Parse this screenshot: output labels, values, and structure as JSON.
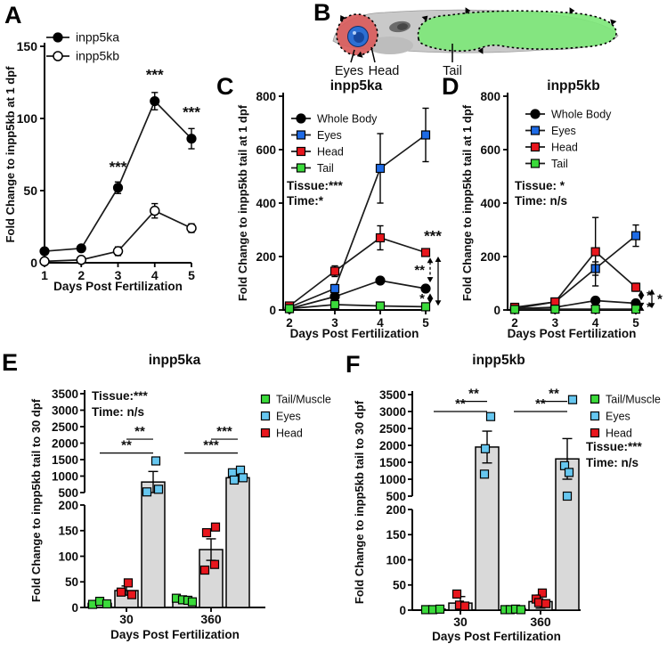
{
  "panels": {
    "A": {
      "letter": "A"
    },
    "B": {
      "letter": "B",
      "labels": {
        "eyes": "Eyes",
        "head": "Head",
        "tail": "Tail"
      }
    },
    "C": {
      "letter": "C"
    },
    "D": {
      "letter": "D"
    },
    "E": {
      "letter": "E"
    },
    "F": {
      "letter": "F"
    }
  },
  "colors": {
    "whole_body": "#000000",
    "eyes_line": "#1e6be6",
    "eyes_bar": "#66c7f0",
    "head": "#e8161d",
    "tail": "#3bdb3b",
    "bar_fill": "#d9d9d9",
    "fish_body": "#c9c9c9",
    "fish_head_region": "#d95c5c",
    "fish_tail_region": "#7ce878",
    "fish_eye_outer": "#2d6fd3",
    "fish_eye_inner": "#17479e"
  },
  "chart_data": [
    {
      "id": "A",
      "type": "line",
      "title": "",
      "xlabel": "Days Post Fertilization",
      "ylabel": "Fold Change to inpp5kb at 1 dpf",
      "ylim": [
        0,
        150
      ],
      "yticks": [
        0,
        50,
        100,
        150
      ],
      "xticks": [
        1,
        2,
        3,
        4,
        5
      ],
      "series": [
        {
          "name": "inpp5ka",
          "marker": "circle",
          "color": "#000000",
          "x": [
            1,
            2,
            3,
            4,
            5
          ],
          "values": [
            8,
            10,
            52,
            112,
            86
          ],
          "errors": [
            1.5,
            1.5,
            4,
            6,
            7
          ]
        },
        {
          "name": "inpp5kb",
          "marker": "circle-open",
          "color": "#000000",
          "x": [
            1,
            2,
            3,
            4,
            5
          ],
          "values": [
            1,
            2,
            8,
            36,
            24
          ],
          "errors": [
            0.5,
            1,
            3,
            5,
            3
          ]
        }
      ],
      "sig": [
        {
          "x": 3,
          "v": 63,
          "text": "***"
        },
        {
          "x": 4,
          "v": 127,
          "text": "***"
        },
        {
          "x": 5,
          "v": 101,
          "text": "***"
        }
      ],
      "arrows": [],
      "notes": []
    },
    {
      "id": "C",
      "type": "line",
      "title": "inpp5ka",
      "xlabel": "Days Post Fertilization",
      "ylabel": "Fold Change to inpp5kb tail at 1 dpf",
      "ylim": [
        0,
        800
      ],
      "yticks": [
        0,
        200,
        400,
        600,
        800
      ],
      "xticks": [
        2,
        3,
        4,
        5
      ],
      "series": [
        {
          "name": "Whole Body",
          "marker": "circle",
          "color": "#000000",
          "x": [
            2,
            3,
            4,
            5
          ],
          "values": [
            5,
            50,
            110,
            80
          ],
          "errors": [
            3,
            6,
            10,
            8
          ]
        },
        {
          "name": "Eyes",
          "marker": "square",
          "color": "#1e6be6",
          "x": [
            2,
            3,
            4,
            5
          ],
          "values": [
            10,
            80,
            530,
            655
          ],
          "errors": [
            4,
            15,
            130,
            100
          ]
        },
        {
          "name": "Head",
          "marker": "square",
          "color": "#e8161d",
          "x": [
            2,
            3,
            4,
            5
          ],
          "values": [
            15,
            145,
            270,
            215
          ],
          "errors": [
            5,
            20,
            45,
            12
          ]
        },
        {
          "name": "Tail",
          "marker": "square",
          "color": "#3bdb3b",
          "x": [
            2,
            3,
            4,
            5
          ],
          "values": [
            5,
            20,
            15,
            12
          ],
          "errors": [
            2,
            4,
            3,
            3
          ]
        }
      ],
      "sig": [
        {
          "x": 5,
          "v": 258,
          "text": "***",
          "dx": 8
        }
      ],
      "arrows": [
        {
          "dx": 5,
          "v1": 196,
          "v2": 103,
          "dashed": true,
          "label": "**",
          "side": "left"
        },
        {
          "dx": 5,
          "v1": 62,
          "v2": 24,
          "dashed": true,
          "label": "*",
          "side": "left"
        },
        {
          "dx": 14,
          "v1": 200,
          "v2": 16,
          "dashed": false,
          "label": "",
          "side": "left"
        }
      ],
      "notes": [
        "Tissue:***",
        "Time:*"
      ]
    },
    {
      "id": "D",
      "type": "line",
      "title": "inpp5kb",
      "xlabel": "Days Post Fertilization",
      "ylabel": "Fold Change to inpp5kb tail at 1 dpf",
      "ylim": [
        0,
        800
      ],
      "yticks": [
        0,
        200,
        400,
        600,
        800
      ],
      "xticks": [
        2,
        3,
        4,
        5
      ],
      "series": [
        {
          "name": "Whole Body",
          "marker": "circle",
          "color": "#000000",
          "x": [
            2,
            3,
            4,
            5
          ],
          "values": [
            5,
            10,
            35,
            25
          ],
          "errors": [
            2,
            3,
            6,
            5
          ]
        },
        {
          "name": "Eyes",
          "marker": "square",
          "color": "#1e6be6",
          "x": [
            2,
            3,
            4,
            5
          ],
          "values": [
            5,
            30,
            155,
            278
          ],
          "errors": [
            2,
            5,
            25,
            40
          ]
        },
        {
          "name": "Head",
          "marker": "square",
          "color": "#e8161d",
          "x": [
            2,
            3,
            4,
            5
          ],
          "values": [
            10,
            30,
            218,
            85
          ],
          "errors": [
            3,
            6,
            128,
            15
          ]
        },
        {
          "name": "Tail",
          "marker": "square",
          "color": "#3bdb3b",
          "x": [
            2,
            3,
            4,
            5
          ],
          "values": [
            2,
            3,
            3,
            3
          ],
          "errors": [
            1,
            1,
            1,
            1
          ]
        }
      ],
      "sig": [],
      "arrows": [
        {
          "dx": 6,
          "v1": 74,
          "v2": 36,
          "dashed": true,
          "label": "*",
          "side": "right"
        },
        {
          "dx": 6,
          "v1": 17,
          "v2": 7,
          "dashed": true,
          "label": "*",
          "side": "right"
        },
        {
          "dx": 18,
          "v1": 78,
          "v2": 6,
          "dashed": false,
          "label": "*",
          "side": "right"
        }
      ],
      "notes": [
        "Tissue: *",
        "Time: n/s"
      ]
    },
    {
      "id": "E",
      "type": "bar",
      "title": "inpp5ka",
      "xlabel": "Days Post Fertilization",
      "ylabel": "Fold Change to inpp5kb tail to 30 dpf",
      "axis_break": {
        "lower": [
          0,
          200
        ],
        "upper": [
          500,
          3500
        ]
      },
      "yticks_lower": [
        0,
        50,
        100,
        150,
        200
      ],
      "yticks_upper": [
        500,
        1000,
        1500,
        2000,
        2500,
        3000,
        3500
      ],
      "groups": [
        "30",
        "360"
      ],
      "series": [
        {
          "name": "Tail/Muscle",
          "color": "#3bdb3b",
          "bars": [
            8,
            12
          ],
          "errors": [
            2,
            3
          ],
          "points": [
            [
              [
                -8,
                6
              ],
              [
                0,
                12
              ],
              [
                8,
                7
              ]
            ],
            [
              [
                -9,
                18
              ],
              [
                -2,
                15
              ],
              [
                4,
                14
              ],
              [
                9,
                11
              ]
            ]
          ]
        },
        {
          "name": "Head",
          "color": "#e8161d",
          "bars": [
            33,
            113
          ],
          "errors": [
            9,
            21
          ],
          "points": [
            [
              [
                -6,
                30
              ],
              [
                2,
                48
              ],
              [
                6,
                25
              ]
            ],
            [
              [
                -5,
                146
              ],
              [
                5,
                157
              ],
              [
                -7,
                73
              ],
              [
                4,
                84
              ]
            ]
          ]
        },
        {
          "name": "Eyes",
          "color": "#66c7f0",
          "bars": [
            820,
            950
          ],
          "errors": [
            320,
            95
          ],
          "points": [
            [
              [
                3,
                1460
              ],
              [
                -7,
                520
              ],
              [
                6,
                600
              ]
            ],
            [
              [
                -6,
                1100
              ],
              [
                3,
                1180
              ],
              [
                -4,
                880
              ],
              [
                6,
                950
              ]
            ]
          ]
        }
      ],
      "sig": [
        {
          "group": 0,
          "from": "Tail/Muscle",
          "to": "Eyes",
          "v": 1700,
          "text": "**"
        },
        {
          "group": 0,
          "from": "Head",
          "to": "Eyes",
          "v": 2120,
          "text": "**"
        },
        {
          "group": 1,
          "from": "Tail/Muscle",
          "to": "Eyes",
          "v": 1700,
          "text": "***"
        },
        {
          "group": 1,
          "from": "Head",
          "to": "Eyes",
          "v": 2120,
          "text": "***"
        }
      ],
      "notes": [
        "Tissue:***",
        "Time: n/s"
      ],
      "legend": [
        "Tail/Muscle",
        "Eyes",
        "Head"
      ]
    },
    {
      "id": "F",
      "type": "bar",
      "title": "inpp5kb",
      "xlabel": "Days Post Fertilization",
      "ylabel": "Fold Change to inpp5kb tail to 30 dpf",
      "axis_break": {
        "lower": [
          0,
          200
        ],
        "upper": [
          500,
          3500
        ]
      },
      "yticks_lower": [
        0,
        50,
        100,
        150,
        200
      ],
      "yticks_upper": [
        500,
        1000,
        1500,
        2000,
        2500,
        3000,
        3500
      ],
      "groups": [
        "30",
        "360"
      ],
      "series": [
        {
          "name": "Tail/Muscle",
          "color": "#3bdb3b",
          "bars": [
            2,
            3
          ],
          "errors": [
            1,
            1
          ],
          "points": [
            [
              [
                -9,
                1
              ],
              [
                -1,
                1
              ],
              [
                7,
                2
              ]
            ],
            [
              [
                -10,
                1
              ],
              [
                -4,
                1
              ],
              [
                2,
                2
              ],
              [
                8,
                1
              ]
            ]
          ]
        },
        {
          "name": "Head",
          "color": "#e8161d",
          "bars": [
            14,
            17
          ],
          "errors": [
            13,
            13
          ],
          "points": [
            [
              [
                -4,
                32
              ],
              [
                -1,
                10
              ],
              [
                5,
                8
              ]
            ],
            [
              [
                2,
                34
              ],
              [
                -5,
                22
              ],
              [
                -2,
                15
              ],
              [
                6,
                13
              ]
            ]
          ]
        },
        {
          "name": "Eyes",
          "color": "#66c7f0",
          "bars": [
            1950,
            1600
          ],
          "errors": [
            470,
            600
          ],
          "points": [
            [
              [
                4,
                2850
              ],
              [
                -2,
                1900
              ],
              [
                -3,
                1150
              ]
            ],
            [
              [
                6,
                3350
              ],
              [
                -3,
                1400
              ],
              [
                2,
                1200
              ],
              [
                0,
                500
              ]
            ]
          ]
        }
      ],
      "sig": [
        {
          "group": 0,
          "from": "Tail/Muscle",
          "to": "Eyes",
          "v": 3000,
          "text": "**"
        },
        {
          "group": 0,
          "from": "Head",
          "to": "Eyes",
          "v": 3300,
          "text": "**"
        },
        {
          "group": 1,
          "from": "Tail/Muscle",
          "to": "Eyes",
          "v": 3000,
          "text": "**"
        },
        {
          "group": 1,
          "from": "Head",
          "to": "Eyes",
          "v": 3300,
          "text": "**"
        }
      ],
      "notes": [
        "Tissue:***",
        "Time: n/s"
      ],
      "legend": [
        "Tail/Muscle",
        "Eyes",
        "Head"
      ]
    }
  ]
}
